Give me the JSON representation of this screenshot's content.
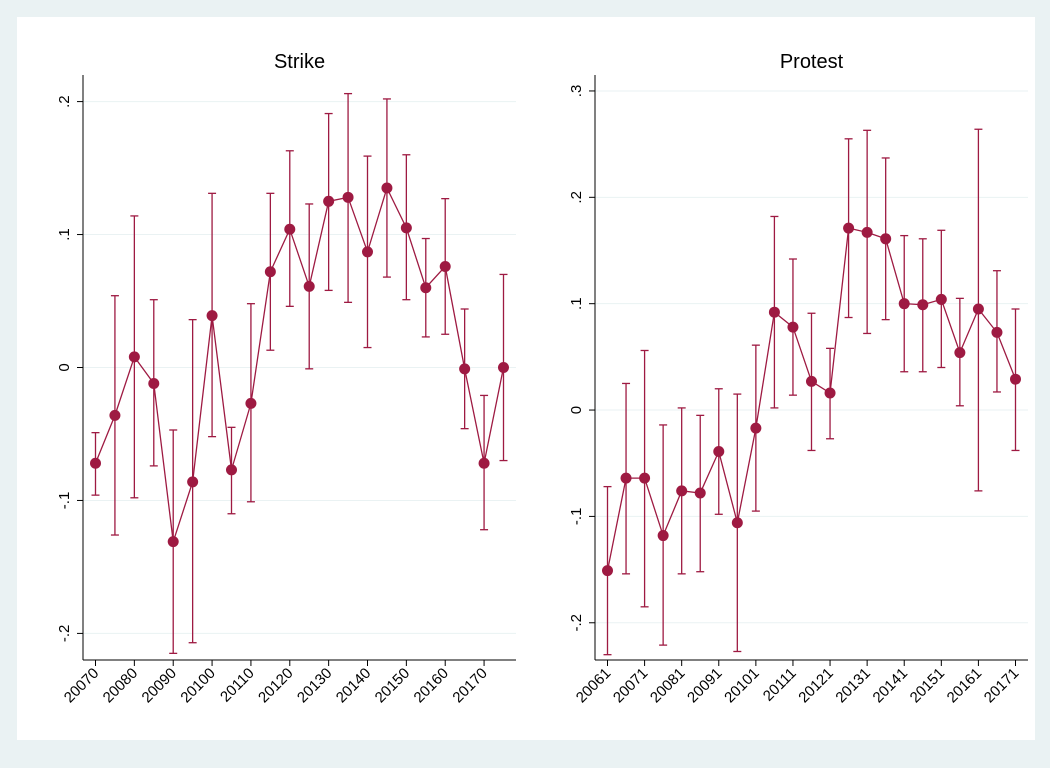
{
  "chart_data": [
    {
      "type": "errorbar",
      "title": "Strike",
      "categories": [
        "20070",
        null,
        "20080",
        null,
        "20090",
        null,
        "20100",
        null,
        "20110",
        null,
        "20120",
        null,
        "20130",
        null,
        "20140",
        null,
        "20150",
        null,
        "20160",
        null,
        "20170",
        null
      ],
      "series": [
        {
          "color": "#9e1a42",
          "values": [
            -0.072,
            -0.036,
            0.008,
            -0.012,
            -0.131,
            -0.086,
            0.039,
            -0.077,
            -0.027,
            0.072,
            0.104,
            0.061,
            0.125,
            0.128,
            0.087,
            0.135,
            0.105,
            0.06,
            0.076,
            -0.001,
            -0.072,
            0.0
          ],
          "upper": [
            -0.049,
            0.054,
            0.114,
            0.051,
            -0.047,
            0.036,
            0.131,
            -0.045,
            0.048,
            0.131,
            0.163,
            0.123,
            0.191,
            0.206,
            0.159,
            0.202,
            0.16,
            0.097,
            0.127,
            0.044,
            -0.021,
            0.07
          ],
          "lower": [
            -0.096,
            -0.126,
            -0.098,
            -0.074,
            -0.215,
            -0.207,
            -0.052,
            -0.11,
            -0.101,
            0.013,
            0.046,
            -0.001,
            0.058,
            0.049,
            0.015,
            0.068,
            0.051,
            0.023,
            0.025,
            -0.046,
            -0.122,
            -0.07
          ]
        }
      ],
      "ylim": [
        -0.22,
        0.22
      ],
      "yticks": [
        {
          "value": -0.2,
          "label": "-.2"
        },
        {
          "value": -0.1,
          "label": "-.1"
        },
        0,
        {
          "value": 0.1,
          "label": ".1"
        },
        {
          "value": 0.2,
          "label": ".2"
        }
      ],
      "grid": true
    },
    {
      "type": "errorbar",
      "title": "Protest",
      "categories": [
        "20061",
        null,
        "20071",
        null,
        "20081",
        null,
        "20091",
        null,
        "20101",
        null,
        "20111",
        null,
        "20121",
        null,
        "20131",
        null,
        "20141",
        null,
        "20151",
        null,
        "20161",
        null,
        "20171"
      ],
      "series": [
        {
          "color": "#9e1a42",
          "values": [
            -0.151,
            -0.064,
            -0.064,
            -0.118,
            -0.076,
            -0.078,
            -0.039,
            -0.106,
            -0.017,
            0.092,
            0.078,
            0.027,
            0.016,
            0.171,
            0.167,
            0.161,
            0.1,
            0.099,
            0.104,
            0.054,
            0.095,
            0.073,
            0.029
          ],
          "upper": [
            -0.072,
            0.025,
            0.056,
            -0.014,
            0.002,
            -0.005,
            0.02,
            0.015,
            0.061,
            0.182,
            0.142,
            0.091,
            0.058,
            0.255,
            0.263,
            0.237,
            0.164,
            0.161,
            0.169,
            0.105,
            0.264,
            0.131,
            0.095
          ],
          "lower": [
            -0.23,
            -0.154,
            -0.185,
            -0.221,
            -0.154,
            -0.152,
            -0.098,
            -0.227,
            -0.095,
            0.002,
            0.014,
            -0.038,
            -0.027,
            0.087,
            0.072,
            0.085,
            0.036,
            0.036,
            0.04,
            0.004,
            -0.076,
            0.017,
            -0.038
          ]
        }
      ],
      "ylim": [
        -0.235,
        0.315
      ],
      "yticks": [
        {
          "value": -0.2,
          "label": "-.2"
        },
        {
          "value": -0.1,
          "label": "-.1"
        },
        0,
        {
          "value": 0.1,
          "label": ".1"
        },
        {
          "value": 0.2,
          "label": ".2"
        },
        {
          "value": 0.3,
          "label": ".3"
        }
      ],
      "grid": true
    }
  ]
}
